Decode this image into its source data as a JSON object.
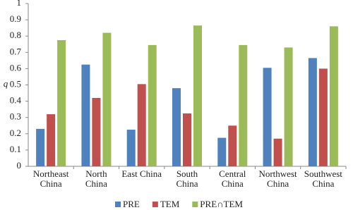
{
  "chart_data": {
    "type": "bar",
    "ylabel": "q",
    "categories": [
      "Northeast\nChina",
      "North\nChina",
      "East China",
      "South\nChina",
      "Central\nChina",
      "Northwest\nChina",
      "Southwest\nChina"
    ],
    "series": [
      {
        "name": "PRE",
        "color": "#4f81bd",
        "values": [
          0.23,
          0.625,
          0.225,
          0.48,
          0.175,
          0.605,
          0.665
        ]
      },
      {
        "name": "TEM",
        "color": "#c0504d",
        "values": [
          0.32,
          0.42,
          0.505,
          0.325,
          0.25,
          0.17,
          0.6
        ]
      },
      {
        "name": "PRE∩TEM",
        "color": "#9bbb59",
        "values": [
          0.775,
          0.82,
          0.745,
          0.865,
          0.745,
          0.73,
          0.86
        ]
      }
    ],
    "ylim": [
      0,
      1
    ],
    "yticks": [
      0,
      0.1,
      0.2,
      0.3,
      0.4,
      0.5,
      0.6,
      0.7,
      0.8,
      0.9,
      1
    ],
    "grid": false,
    "legend": "bottom"
  }
}
